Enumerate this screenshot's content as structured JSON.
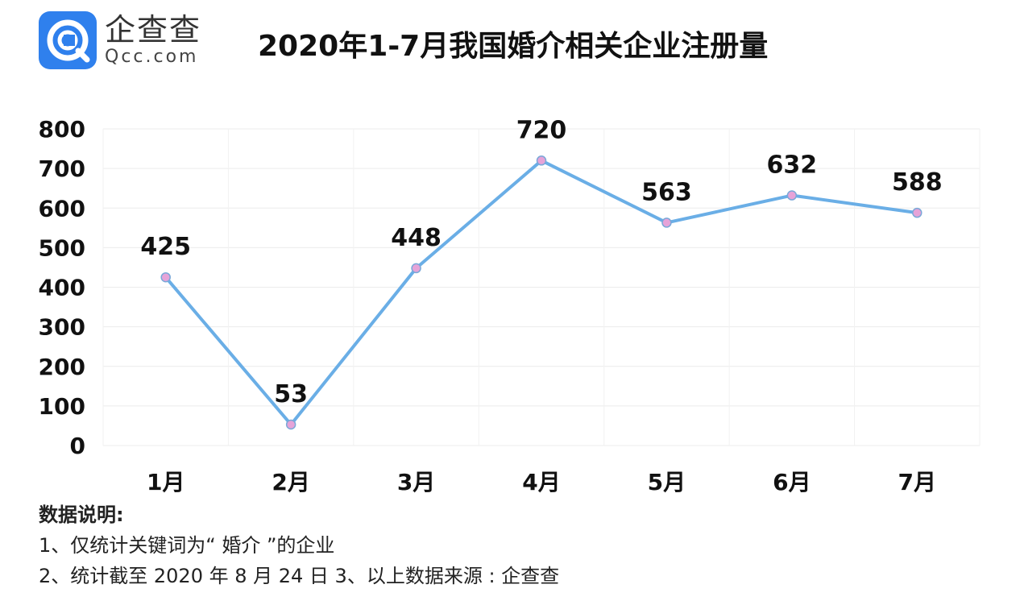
{
  "logo": {
    "cn": "企查查",
    "en": "Qcc.com"
  },
  "title": "2020年1-7月我国婚介相关企业注册量",
  "chart_data": {
    "type": "line",
    "title": "2020年1-7月我国婚介相关企业注册量",
    "categories": [
      "1月",
      "2月",
      "3月",
      "4月",
      "5月",
      "6月",
      "7月"
    ],
    "series": [
      {
        "values": [
          425,
          53,
          448,
          720,
          563,
          632,
          588
        ]
      }
    ],
    "ylim": [
      0,
      800
    ],
    "yticks": [
      0,
      100,
      200,
      300,
      400,
      500,
      600,
      700,
      800
    ],
    "grid": true,
    "data_labels": true,
    "line_color": "#6aaee6",
    "marker_color": "#e6a3d8"
  },
  "notes": {
    "heading": "数据说明:",
    "line1": "1、仅统计关键词为“ 婚介 ”的企业",
    "line2": "2、统计截至 2020 年 8 月 24 日   3、以上数据来源 : 企查查"
  }
}
